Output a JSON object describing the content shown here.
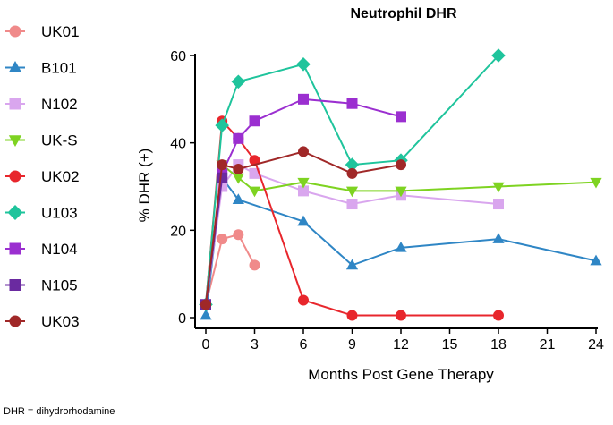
{
  "footnote": "DHR = dihydrorhodamine",
  "chart_data": {
    "type": "line",
    "title": "Neutrophil DHR",
    "xlabel": "Months Post Gene Therapy",
    "ylabel": "% DHR (+)",
    "xlim": [
      0,
      24
    ],
    "ylim": [
      0,
      60
    ],
    "xticks": [
      0,
      3,
      6,
      9,
      12,
      15,
      18,
      21,
      24
    ],
    "yticks": [
      0,
      20,
      40,
      60
    ],
    "grid": false,
    "legend": "left",
    "series": [
      {
        "name": "UK01",
        "color": "#f08a8a",
        "marker": "circle",
        "x": [
          0,
          1,
          2,
          3
        ],
        "y": [
          3,
          18,
          19,
          12
        ]
      },
      {
        "name": "B101",
        "color": "#2f86c5",
        "marker": "triangle-up",
        "x": [
          0,
          1,
          2,
          6,
          9,
          12,
          18,
          24
        ],
        "y": [
          0.5,
          32,
          27,
          22,
          12,
          16,
          18,
          13
        ]
      },
      {
        "name": "N102",
        "color": "#d9a6ee",
        "marker": "square",
        "x": [
          0,
          1,
          2,
          3,
          6,
          9,
          12,
          18
        ],
        "y": [
          3,
          30,
          35,
          33,
          29,
          26,
          28,
          26
        ]
      },
      {
        "name": "UK-S",
        "color": "#7ed321",
        "marker": "triangle-down",
        "x": [
          1,
          2,
          3,
          6,
          9,
          12,
          18,
          24
        ],
        "y": [
          35,
          32,
          29,
          31,
          29,
          29,
          30,
          31
        ]
      },
      {
        "name": "UK02",
        "color": "#e8262c",
        "marker": "circle",
        "x": [
          0,
          1,
          2,
          3,
          6,
          9,
          12,
          18
        ],
        "y": [
          3,
          45,
          41,
          36,
          4,
          0.5,
          0.5,
          0.5
        ]
      },
      {
        "name": "U103",
        "color": "#1fc49c",
        "marker": "diamond",
        "x": [
          0,
          1,
          2,
          6,
          9,
          12,
          18
        ],
        "y": [
          3,
          44,
          54,
          58,
          35,
          36,
          60
        ]
      },
      {
        "name": "N104",
        "color": "#9b2fd0",
        "marker": "square",
        "x": [
          0,
          1,
          2,
          3,
          6,
          9,
          12
        ],
        "y": [
          3,
          33,
          41,
          45,
          50,
          49,
          46
        ]
      },
      {
        "name": "N105",
        "color": "#6a2aa0",
        "marker": "square",
        "x": [
          0,
          1
        ],
        "y": [
          3,
          32
        ]
      },
      {
        "name": "UK03",
        "color": "#a02828",
        "marker": "circle",
        "x": [
          0,
          1,
          2,
          6,
          9,
          12
        ],
        "y": [
          3,
          35,
          34,
          38,
          33,
          35
        ]
      }
    ]
  }
}
